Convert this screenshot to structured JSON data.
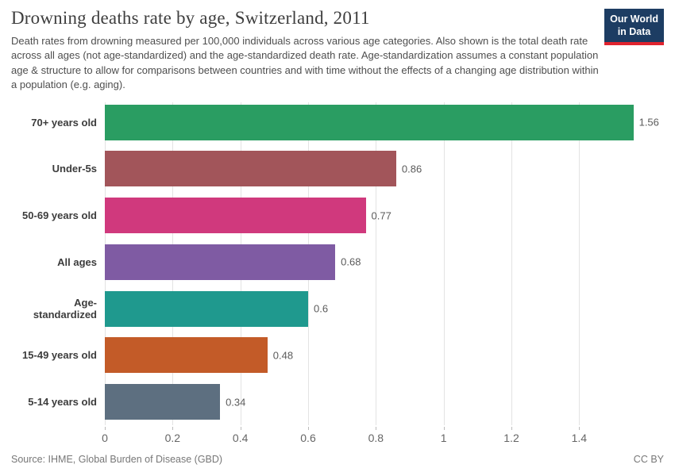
{
  "header": {
    "title": "Drowning deaths rate by age, Switzerland, 2011",
    "subtitle": "Death rates from drowning measured per 100,000 individuals across various age categories. Also shown is the total death rate across all ages (not age-standardized) and the age-standardized death rate. Age-standardization assumes a constant population age & structure to allow for comparisons between countries and with time without the effects of a changing age distribution within a population (e.g. aging)."
  },
  "logo": {
    "line1": "Our World",
    "line2": "in Data",
    "bg_color": "#1d3d63",
    "accent_color": "#e0232e"
  },
  "chart_data": {
    "type": "bar",
    "orientation": "horizontal",
    "title": "Drowning deaths rate by age, Switzerland, 2011",
    "xlabel": "",
    "ylabel": "",
    "categories": [
      "70+ years old",
      "Under-5s",
      "50-69 years old",
      "All ages",
      "Age-standardized",
      "15-49 years old",
      "5-14 years old"
    ],
    "values": [
      1.56,
      0.86,
      0.77,
      0.68,
      0.6,
      0.48,
      0.34
    ],
    "value_labels": [
      "1.56",
      "0.86",
      "0.77",
      "0.68",
      "0.6",
      "0.48",
      "0.34"
    ],
    "colors": [
      "#2a9d62",
      "#a2555a",
      "#d0397d",
      "#7f5ba3",
      "#1f998e",
      "#c35b28",
      "#5d6f80"
    ],
    "xlim": [
      0,
      1.65
    ],
    "xticks": [
      0,
      0.2,
      0.4,
      0.6,
      0.8,
      1,
      1.2,
      1.4
    ],
    "xtick_labels": [
      "0",
      "0.2",
      "0.4",
      "0.6",
      "0.8",
      "1",
      "1.2",
      "1.4"
    ],
    "grid": "vertical",
    "legend": "none"
  },
  "footer": {
    "source": "Source: IHME, Global Burden of Disease (GBD)",
    "license": "CC BY"
  }
}
